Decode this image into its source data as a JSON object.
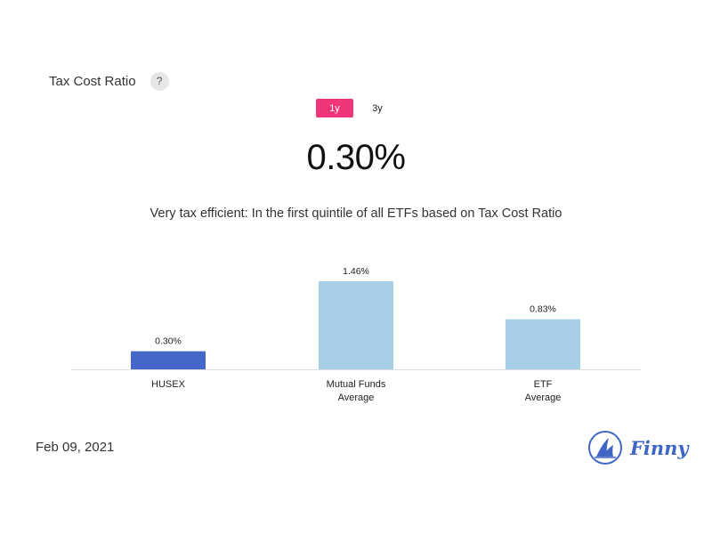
{
  "header": {
    "title": "Tax Cost Ratio",
    "help_label": "?"
  },
  "tabs": [
    {
      "label": "1y",
      "active": true
    },
    {
      "label": "3y",
      "active": false
    }
  ],
  "summary": {
    "value": "0.30%",
    "description": "Very tax efficient: In the first quintile of all ETFs based on Tax Cost Ratio"
  },
  "colors": {
    "accent": "#f0357a",
    "primary_bar": "#4567c9",
    "secondary_bar": "#a7cfe7",
    "axis": "#dddddd",
    "brand": "#3f66c5"
  },
  "chart_data": {
    "type": "bar",
    "categories": [
      [
        "HUSEX"
      ],
      [
        "Mutual Funds",
        "Average"
      ],
      [
        "ETF",
        "Average"
      ]
    ],
    "values": [
      0.3,
      1.46,
      0.83
    ],
    "value_labels": [
      "0.30%",
      "1.46%",
      "0.83%"
    ],
    "highlight_index": 0,
    "ylim": [
      0,
      1.46
    ],
    "grid": false
  },
  "footer": {
    "date": "Feb 09, 2021",
    "brand": "Finny",
    "logo_icon": "finny-sailboat-logo"
  }
}
